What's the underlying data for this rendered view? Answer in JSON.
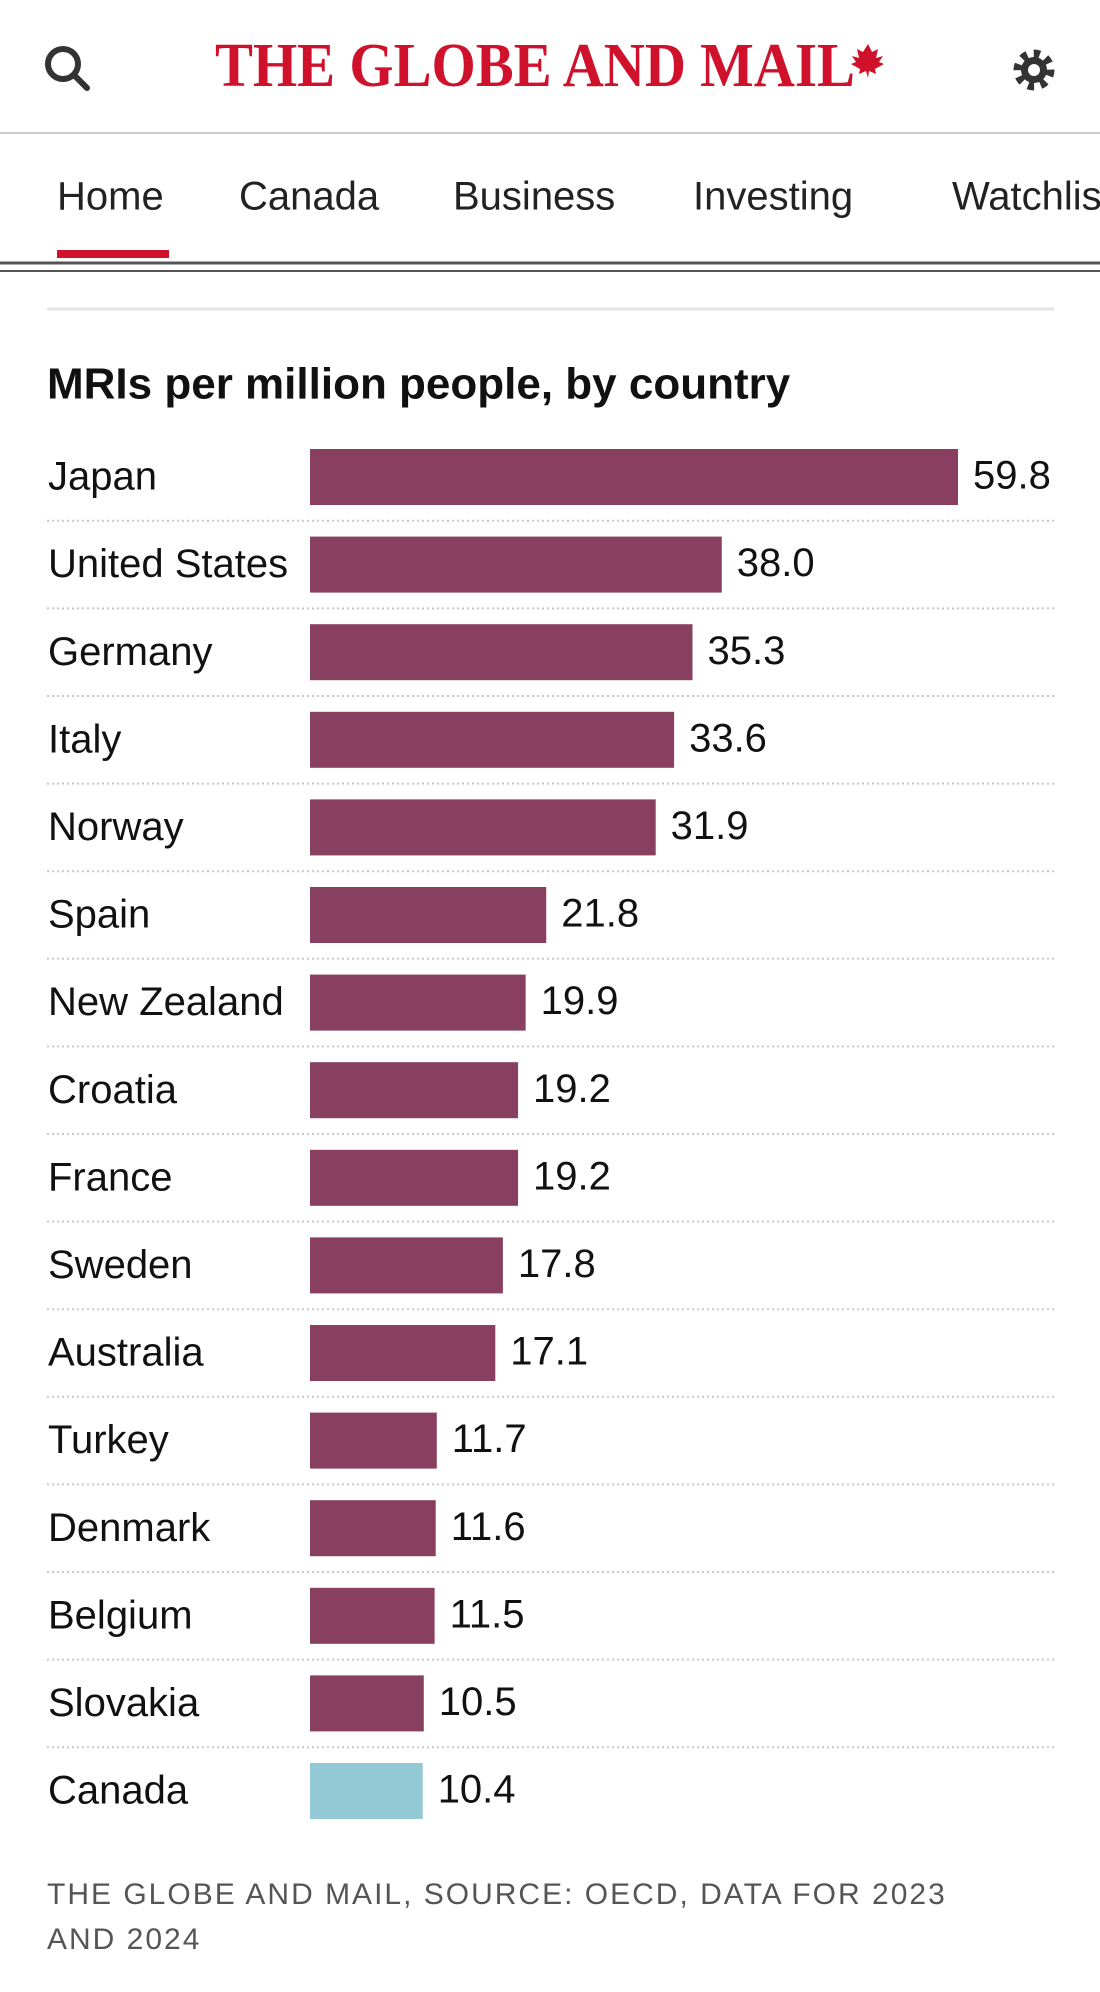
{
  "header": {
    "logo": "THE GLOBE AND MAIL"
  },
  "nav": {
    "items": [
      "Home",
      "Canada",
      "Business",
      "Investing",
      "Watchlist"
    ]
  },
  "chart_data": {
    "type": "bar",
    "orientation": "horizontal",
    "title": "MRIs per million people, by country",
    "categories": [
      "Japan",
      "United States",
      "Germany",
      "Italy",
      "Norway",
      "Spain",
      "New Zealand",
      "Croatia",
      "France",
      "Sweden",
      "Australia",
      "Turkey",
      "Denmark",
      "Belgium",
      "Slovakia",
      "Canada"
    ],
    "values": [
      59.8,
      38,
      35.3,
      33.6,
      31.9,
      21.8,
      19.9,
      19.2,
      19.2,
      17.8,
      17.1,
      11.7,
      11.6,
      11.5,
      10.5,
      10.4
    ],
    "value_labels": [
      "59.8",
      "38.0",
      "35.3",
      "33.6",
      "31.9",
      "21.8",
      "19.9",
      "19.2",
      "19.2",
      "17.8",
      "17.1",
      "11.7",
      "11.6",
      "11.5",
      "10.5",
      "10.4"
    ],
    "colors": [
      "#893f5f",
      "#893f5f",
      "#893f5f",
      "#893f5f",
      "#893f5f",
      "#893f5f",
      "#893f5f",
      "#893f5f",
      "#893f5f",
      "#893f5f",
      "#893f5f",
      "#893f5f",
      "#893f5f",
      "#893f5f",
      "#893f5f",
      "#93c8d5"
    ],
    "source": "THE GLOBE AND MAIL, SOURCE: OECD, DATA FOR 2023 AND 2024"
  }
}
